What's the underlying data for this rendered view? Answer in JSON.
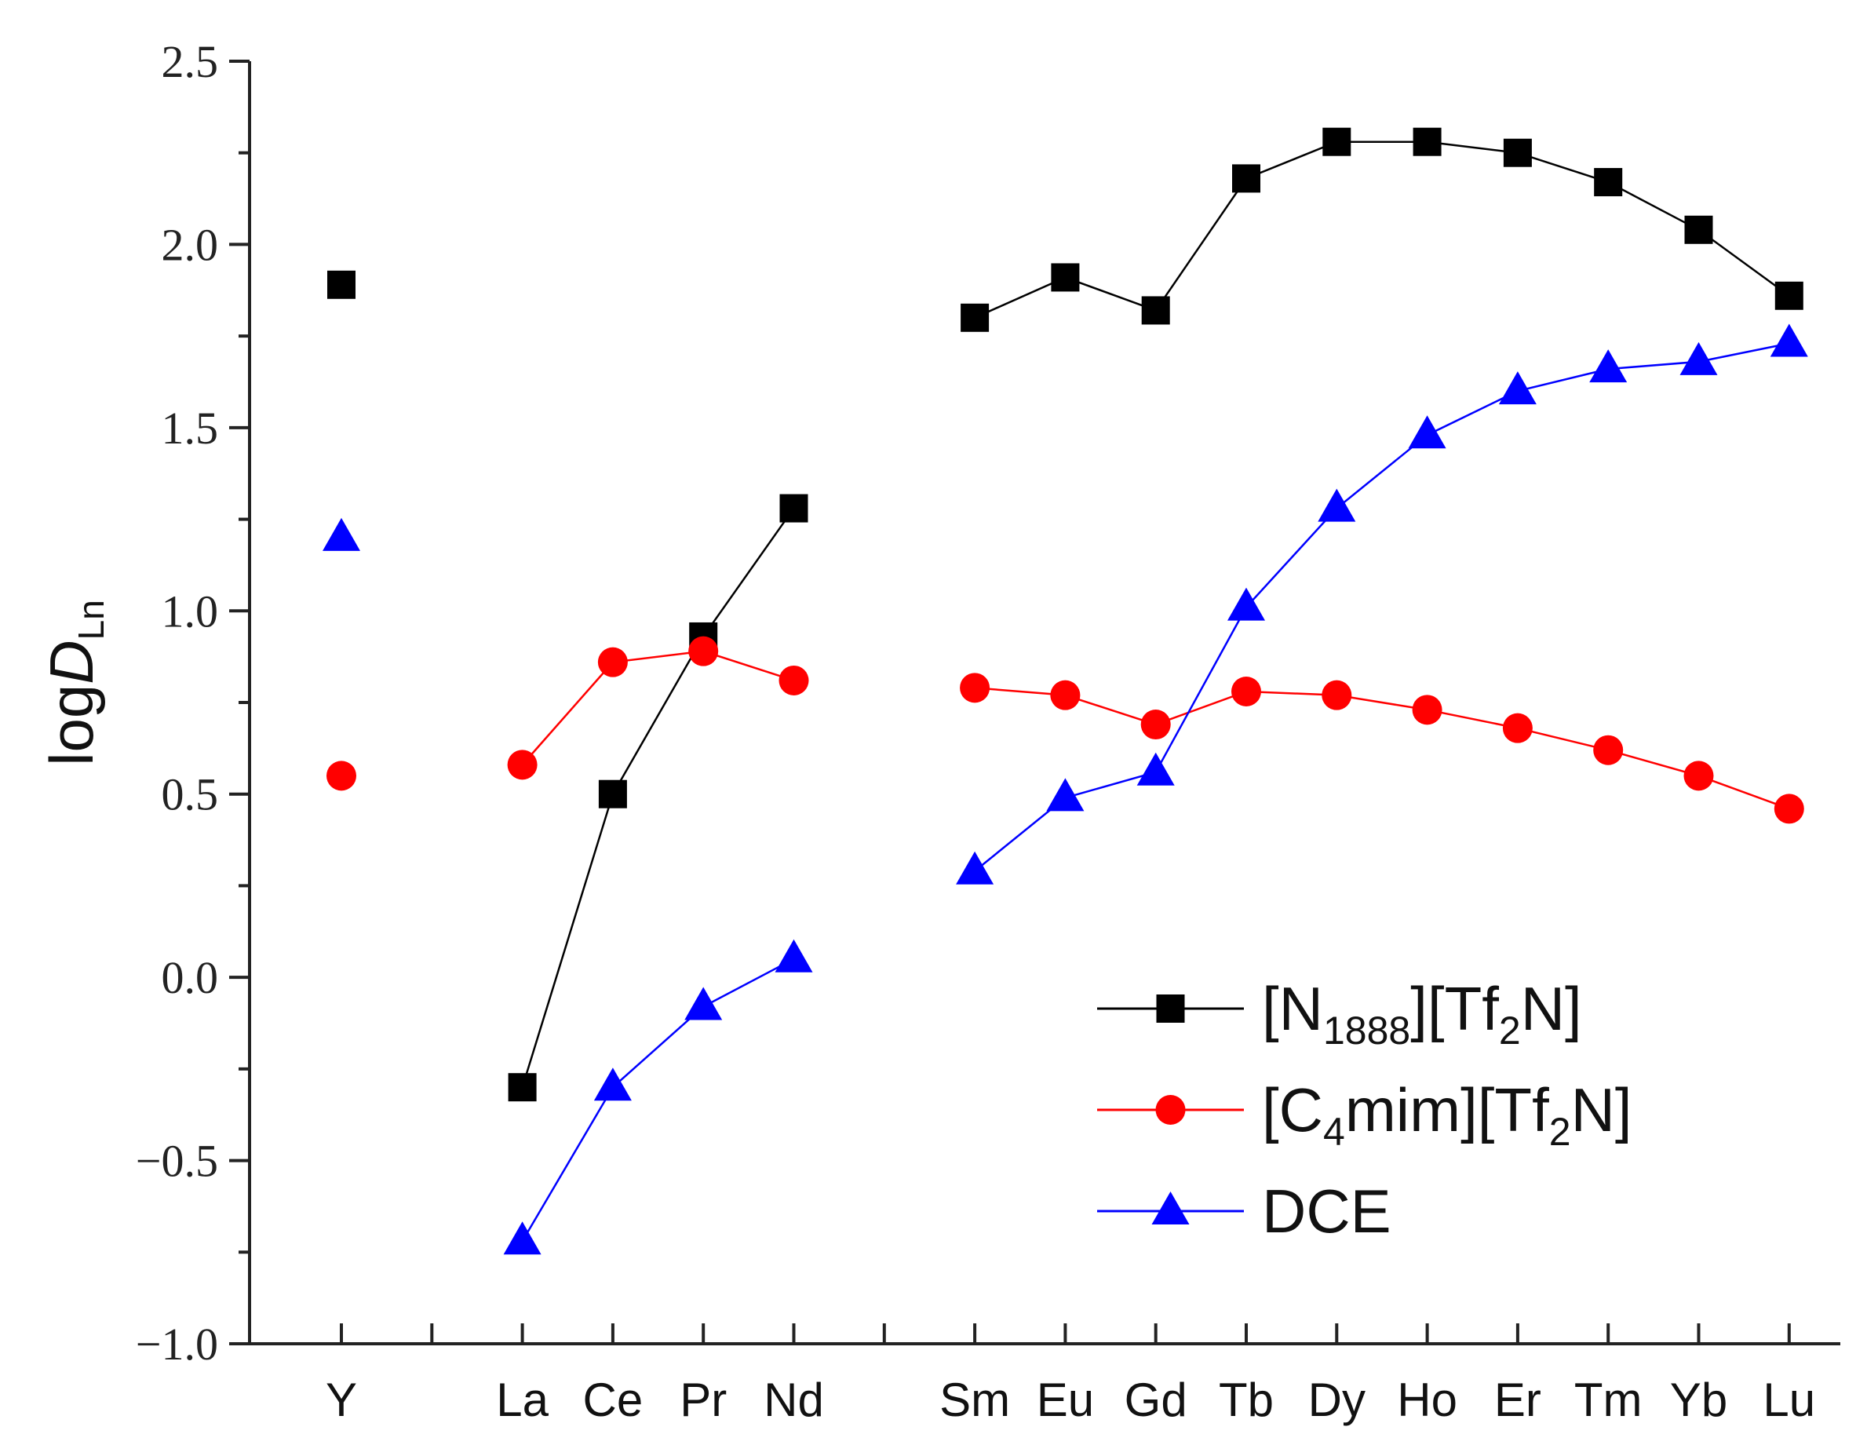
{
  "chart_data": {
    "type": "line",
    "title": "",
    "xlabel": "",
    "ylabel": {
      "main": "log",
      "italic": "D",
      "sub": "Ln"
    },
    "ylim": [
      -1.0,
      2.5
    ],
    "yticks": [
      "−1.0",
      "−0.5",
      "0.0",
      "0.5",
      "1.0",
      "1.5",
      "2.0",
      "2.5"
    ],
    "ytick_values": [
      -1.0,
      -0.5,
      0.0,
      0.5,
      1.0,
      1.5,
      2.0,
      2.5
    ],
    "categories": [
      "Y",
      "",
      "La",
      "Ce",
      "Pr",
      "Nd",
      "",
      "Sm",
      "Eu",
      "Gd",
      "Tb",
      "Dy",
      "Ho",
      "Er",
      "Tm",
      "Yb",
      "Lu"
    ],
    "legend_position": "lower-right",
    "series": [
      {
        "name": "[N1888][Tf2N]",
        "legend": {
          "a": "[N",
          "sub1": "1888",
          "b": "][Tf",
          "sub2": "2",
          "c": "N]"
        },
        "color": "#000000",
        "marker": "square",
        "values": [
          1.89,
          null,
          -0.3,
          0.5,
          0.93,
          1.28,
          null,
          1.8,
          1.91,
          1.82,
          2.18,
          2.28,
          2.28,
          2.25,
          2.17,
          2.04,
          1.86
        ]
      },
      {
        "name": "[C4mim][Tf2N]",
        "legend": {
          "a": "[C",
          "sub1": "4",
          "b": "mim][Tf",
          "sub2": "2",
          "c": "N]"
        },
        "color": "#ff0000",
        "marker": "circle",
        "values": [
          0.55,
          null,
          0.58,
          0.86,
          0.89,
          0.81,
          null,
          0.79,
          0.77,
          0.69,
          0.78,
          0.77,
          0.73,
          0.68,
          0.62,
          0.55,
          0.46
        ]
      },
      {
        "name": "DCE",
        "legend": {
          "a": "DCE",
          "sub1": "",
          "b": "",
          "sub2": "",
          "c": ""
        },
        "color": "#0000ff",
        "marker": "triangle",
        "values": [
          1.2,
          null,
          -0.72,
          -0.3,
          -0.08,
          0.05,
          null,
          0.29,
          0.49,
          0.56,
          1.01,
          1.28,
          1.48,
          1.6,
          1.66,
          1.68,
          1.73
        ]
      }
    ]
  }
}
